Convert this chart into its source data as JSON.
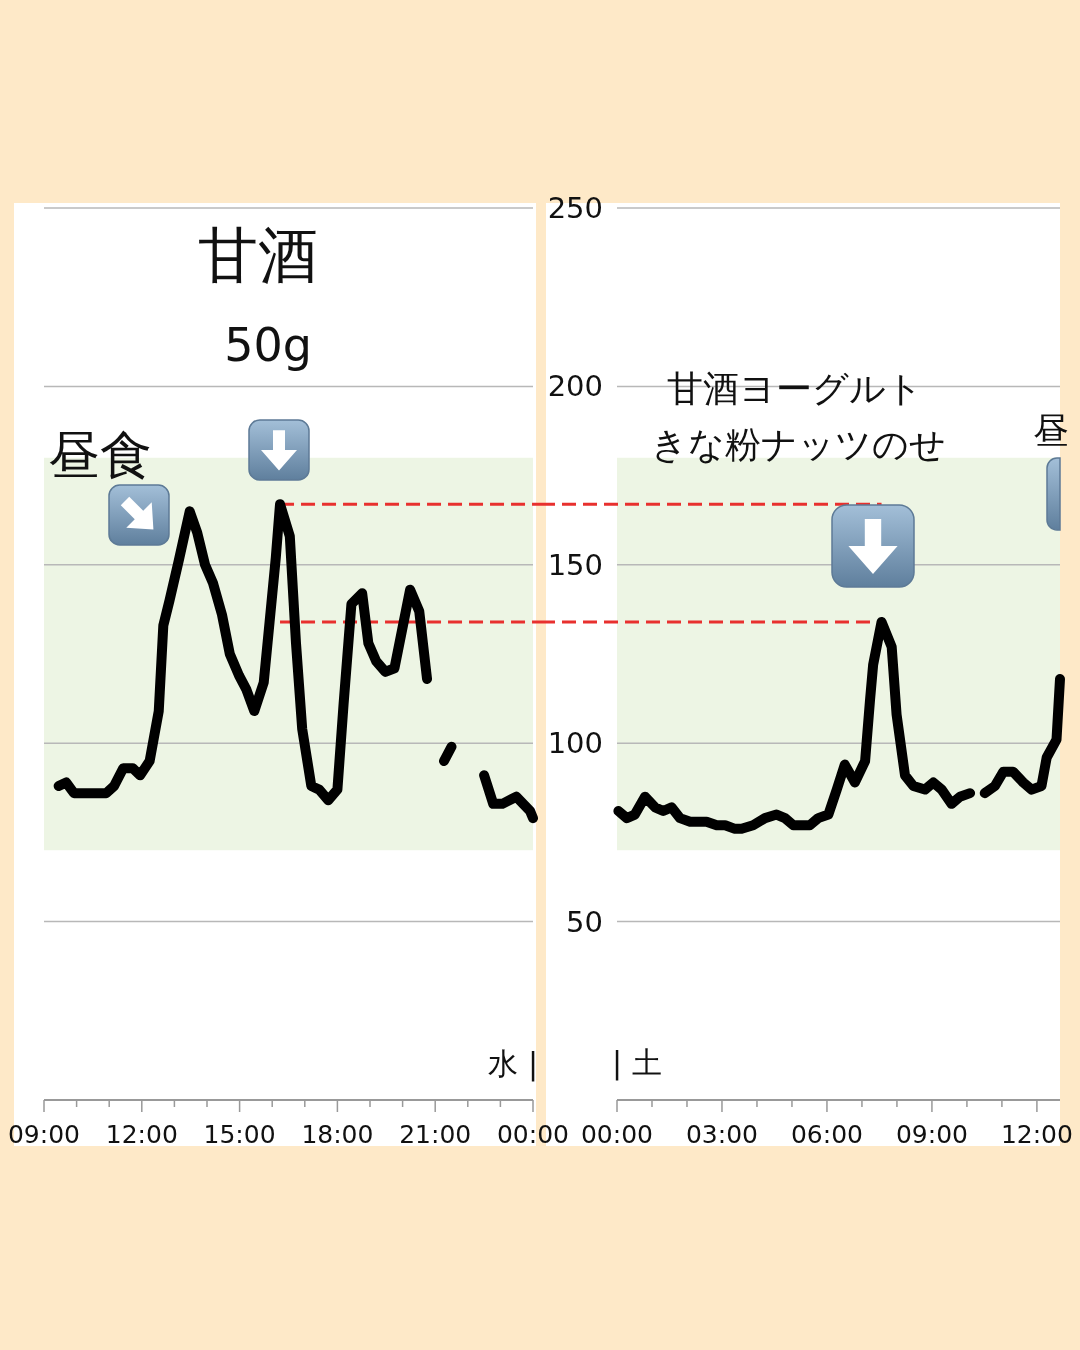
{
  "chart_data": [
    {
      "type": "line",
      "xlim": [
        9,
        24
      ],
      "ylim": [
        0,
        250
      ],
      "xticks": [
        {
          "value": 9,
          "label": "09:00"
        },
        {
          "value": 10,
          "label": null
        },
        {
          "value": 11,
          "label": null
        },
        {
          "value": 12,
          "label": "12:00"
        },
        {
          "value": 13,
          "label": null
        },
        {
          "value": 14,
          "label": null
        },
        {
          "value": 15,
          "label": "15:00"
        },
        {
          "value": 16,
          "label": null
        },
        {
          "value": 17,
          "label": null
        },
        {
          "value": 18,
          "label": "18:00"
        },
        {
          "value": 19,
          "label": null
        },
        {
          "value": 20,
          "label": null
        },
        {
          "value": 21,
          "label": "21:00"
        },
        {
          "value": 22,
          "label": null
        },
        {
          "value": 23,
          "label": null
        },
        {
          "value": 24,
          "label": "00:00"
        }
      ],
      "yticks": [
        50,
        100,
        150,
        200,
        250
      ],
      "grid": "y",
      "tick_labels": "x",
      "series": [
        {
          "color": "#000000",
          "x": [
            9.45,
            9.68,
            9.92,
            10.91,
            11.15,
            11.43,
            11.72,
            11.95,
            12.24,
            12.52,
            12.66,
            12.85,
            13.13,
            13.47,
            13.7,
            13.94,
            14.18,
            14.46,
            14.7,
            14.98,
            15.21,
            15.45,
            15.74,
            15.92,
            16.11,
            16.24,
            16.54,
            16.73,
            16.92,
            17.2,
            17.44,
            17.72,
            18.0,
            18.19,
            18.43,
            18.76,
            18.95,
            19.19,
            19.47,
            19.75,
            19.99,
            20.23,
            20.51,
            20.75,
            21.0,
            21.27,
            21.5,
            22.0,
            22.5,
            22.78,
            23.06,
            23.49,
            23.91,
            24.0
          ],
          "values": [
            88,
            89,
            86,
            86,
            88,
            93,
            93,
            91,
            95,
            109,
            133,
            140,
            151,
            165,
            159,
            150,
            145,
            136,
            125,
            119,
            115,
            109,
            117,
            134,
            152,
            167,
            158,
            128,
            104,
            88,
            87,
            84,
            87,
            111,
            139,
            142,
            128,
            123,
            120,
            121,
            132,
            143,
            137,
            118,
            null,
            95,
            99,
            null,
            91,
            83,
            83,
            85,
            81,
            79
          ]
        }
      ],
      "bands": [
        {
          "axis": "y",
          "from": 70,
          "to": 180,
          "color": "#edf5e4"
        }
      ],
      "ref_lines": [
        {
          "axis": "y",
          "value": 167,
          "color": "#e8302e",
          "line_style": "dashed"
        },
        {
          "axis": "y",
          "value": 134,
          "color": "#e8302e",
          "line_style": "dashed"
        }
      ],
      "annotations": [
        "甘酒",
        "50g",
        "昼食",
        "水 |"
      ]
    },
    {
      "type": "line",
      "xlim": [
        0,
        12.66
      ],
      "ylim": [
        0,
        250
      ],
      "xticks": [
        {
          "value": 0,
          "label": "00:00"
        },
        {
          "value": 1,
          "label": null
        },
        {
          "value": 2,
          "label": null
        },
        {
          "value": 3,
          "label": "03:00"
        },
        {
          "value": 4,
          "label": null
        },
        {
          "value": 5,
          "label": null
        },
        {
          "value": 6,
          "label": "06:00"
        },
        {
          "value": 7,
          "label": null
        },
        {
          "value": 8,
          "label": null
        },
        {
          "value": 9,
          "label": "09:00"
        },
        {
          "value": 10,
          "label": null
        },
        {
          "value": 11,
          "label": null
        },
        {
          "value": 12,
          "label": "12:00"
        }
      ],
      "yticks": [
        50,
        100,
        150,
        200,
        250
      ],
      "grid": "y",
      "series": [
        {
          "color": "#000000",
          "x": [
            0.04,
            0.28,
            0.51,
            0.8,
            1.09,
            1.32,
            1.56,
            1.8,
            2.09,
            2.56,
            2.85,
            3.09,
            3.37,
            3.56,
            3.89,
            4.23,
            4.56,
            4.8,
            5.04,
            5.51,
            5.75,
            6.04,
            6.28,
            6.51,
            6.8,
            7.09,
            7.23,
            7.32,
            7.56,
            7.85,
            7.99,
            8.23,
            8.47,
            8.8,
            9.04,
            9.28,
            9.56,
            9.8,
            10.09,
            10.3,
            10.51,
            10.8,
            11.04,
            11.32,
            11.61,
            11.85,
            12.13,
            12.28,
            12.56,
            12.66
          ],
          "values": [
            81,
            79,
            80,
            85,
            82,
            81,
            82,
            79,
            78,
            78,
            77,
            77,
            76,
            76,
            77,
            79,
            80,
            79,
            77,
            77,
            79,
            80,
            87,
            94,
            89,
            95,
            112,
            122,
            134,
            127,
            108,
            91,
            88,
            87,
            89,
            87,
            83,
            85,
            86,
            null,
            86,
            88,
            92,
            92,
            89,
            87,
            88,
            96,
            101,
            118
          ]
        }
      ],
      "bands": [
        {
          "axis": "y",
          "from": 70,
          "to": 180,
          "color": "#edf5e4"
        }
      ],
      "ref_lines": [
        {
          "axis": "y",
          "value": 167,
          "color": "#e8302e",
          "line_style": "dashed"
        },
        {
          "axis": "y",
          "value": 134,
          "color": "#e8302e",
          "line_style": "dashed"
        }
      ],
      "annotations": [
        "甘酒ヨーグルト",
        "きな粉ナッツのせ",
        "昼",
        "| 土"
      ]
    }
  ]
}
